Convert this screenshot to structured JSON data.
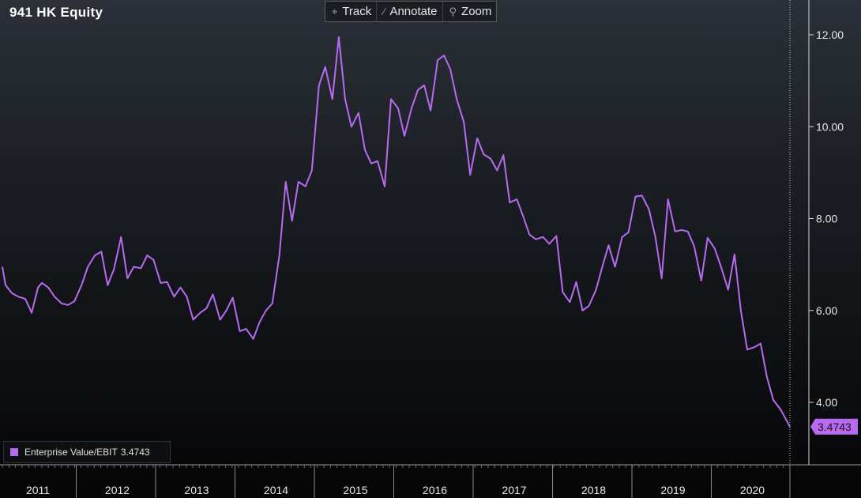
{
  "window": {
    "title": "941 HK Equity"
  },
  "toolbar": {
    "items": [
      {
        "label": "Track",
        "icon": "crosshair-icon"
      },
      {
        "label": "Annotate",
        "icon": "pencil-icon"
      },
      {
        "label": "Zoom",
        "icon": "magnifier-icon"
      }
    ]
  },
  "legend": {
    "name": "Enterprise Value/EBIT",
    "value": "3.4743",
    "color": "#b86bf0"
  },
  "chart_data": {
    "type": "line",
    "title": "941 HK Equity",
    "xlabel": "",
    "ylabel": "",
    "ylim": [
      3.0,
      12.6
    ],
    "xlim": [
      2011.0,
      2020.95
    ],
    "y_ticks": [
      "4.00",
      "6.00",
      "8.00",
      "10.00",
      "12.00"
    ],
    "x_ticks": [
      "2011",
      "2012",
      "2013",
      "2014",
      "2015",
      "2016",
      "2017",
      "2018",
      "2019",
      "2020"
    ],
    "last_value_label": "3.4743",
    "grid": false,
    "axis_position": "right",
    "series": [
      {
        "name": "Enterprise Value/EBIT",
        "color": "#b86bf0",
        "x": [
          2011.0,
          2011.04,
          2011.12,
          2011.2,
          2011.29,
          2011.37,
          2011.45,
          2011.5,
          2011.58,
          2011.66,
          2011.75,
          2011.83,
          2011.91,
          2012.0,
          2012.08,
          2012.17,
          2012.25,
          2012.33,
          2012.41,
          2012.5,
          2012.58,
          2012.66,
          2012.75,
          2012.83,
          2012.91,
          2013.0,
          2013.08,
          2013.17,
          2013.25,
          2013.33,
          2013.41,
          2013.5,
          2013.58,
          2013.66,
          2013.75,
          2013.83,
          2013.91,
          2014.0,
          2014.08,
          2014.17,
          2014.25,
          2014.33,
          2014.41,
          2014.5,
          2014.58,
          2014.66,
          2014.74,
          2014.83,
          2014.91,
          2015.0,
          2015.08,
          2015.17,
          2015.25,
          2015.33,
          2015.41,
          2015.5,
          2015.58,
          2015.66,
          2015.74,
          2015.83,
          2015.91,
          2016.0,
          2016.08,
          2016.17,
          2016.25,
          2016.33,
          2016.41,
          2016.5,
          2016.58,
          2016.66,
          2016.74,
          2016.83,
          2016.91,
          2017.0,
          2017.08,
          2017.17,
          2017.25,
          2017.33,
          2017.41,
          2017.5,
          2017.58,
          2017.66,
          2017.74,
          2017.83,
          2017.91,
          2018.0,
          2018.08,
          2018.17,
          2018.25,
          2018.33,
          2018.41,
          2018.5,
          2018.58,
          2018.66,
          2018.74,
          2018.83,
          2018.91,
          2019.0,
          2019.08,
          2019.17,
          2019.25,
          2019.33,
          2019.41,
          2019.5,
          2019.58,
          2019.66,
          2019.74,
          2019.83,
          2019.91,
          2020.0,
          2020.08,
          2020.17,
          2020.25,
          2020.33,
          2020.41,
          2020.5,
          2020.58,
          2020.66,
          2020.74,
          2020.83,
          2020.91,
          2020.95
        ],
        "y": [
          6.95,
          6.55,
          6.38,
          6.3,
          6.25,
          5.95,
          6.5,
          6.6,
          6.5,
          6.3,
          6.15,
          6.12,
          6.2,
          6.55,
          6.95,
          7.2,
          7.28,
          6.55,
          6.9,
          7.6,
          6.7,
          6.95,
          6.92,
          7.2,
          7.1,
          6.6,
          6.62,
          6.3,
          6.5,
          6.3,
          5.8,
          5.95,
          6.05,
          6.35,
          5.8,
          6.0,
          6.28,
          5.55,
          5.6,
          5.38,
          5.75,
          6.0,
          6.15,
          7.2,
          8.8,
          7.95,
          8.8,
          8.7,
          9.05,
          10.9,
          11.3,
          10.6,
          11.95,
          10.6,
          10.0,
          10.3,
          9.5,
          9.2,
          9.25,
          8.7,
          10.6,
          10.4,
          9.8,
          10.4,
          10.8,
          10.9,
          10.35,
          11.45,
          11.55,
          11.25,
          10.6,
          10.1,
          8.95,
          9.75,
          9.4,
          9.3,
          9.05,
          9.38,
          8.35,
          8.42,
          8.05,
          7.65,
          7.55,
          7.6,
          7.45,
          7.62,
          6.4,
          6.18,
          6.62,
          6.0,
          6.1,
          6.45,
          6.95,
          7.42,
          6.95,
          7.6,
          7.7,
          8.48,
          8.5,
          8.2,
          7.6,
          6.7,
          8.42,
          7.72,
          7.75,
          7.72,
          7.4,
          6.65,
          7.58,
          7.35,
          6.95,
          6.45,
          7.22,
          6.0,
          5.15,
          5.2,
          5.28,
          4.55,
          4.05,
          3.85,
          3.6,
          3.47
        ]
      }
    ]
  }
}
